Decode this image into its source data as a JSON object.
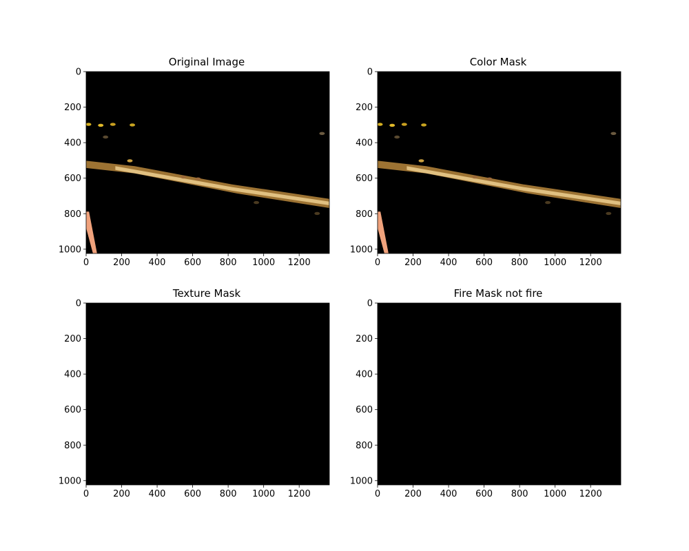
{
  "figure": {
    "background": "#ffffff",
    "image_background": "#000000"
  },
  "panels": [
    {
      "title": "Original Image",
      "shows_scene": true
    },
    {
      "title": "Color Mask",
      "shows_scene": true
    },
    {
      "title": "Texture Mask",
      "shows_scene": false
    },
    {
      "title": "Fire Mask not fire",
      "shows_scene": false
    }
  ],
  "chart_data": [
    {
      "type": "image",
      "title": "Original Image",
      "xlim": [
        0,
        1370
      ],
      "ylim": [
        1024,
        0
      ],
      "xticks": [
        0,
        200,
        400,
        600,
        800,
        1000,
        1200
      ],
      "yticks": [
        0,
        200,
        400,
        600,
        800,
        1000
      ]
    },
    {
      "type": "image",
      "title": "Color Mask",
      "xlim": [
        0,
        1370
      ],
      "ylim": [
        1024,
        0
      ],
      "xticks": [
        0,
        200,
        400,
        600,
        800,
        1000,
        1200
      ],
      "yticks": [
        0,
        200,
        400,
        600,
        800,
        1000
      ]
    },
    {
      "type": "image",
      "title": "Texture Mask",
      "xlim": [
        0,
        1370
      ],
      "ylim": [
        1024,
        0
      ],
      "xticks": [
        0,
        200,
        400,
        600,
        800,
        1000,
        1200
      ],
      "yticks": [
        0,
        200,
        400,
        600,
        800,
        1000
      ]
    },
    {
      "type": "image",
      "title": "Fire Mask not fire",
      "xlim": [
        0,
        1370
      ],
      "ylim": [
        1024,
        0
      ],
      "xticks": [
        0,
        200,
        400,
        600,
        800,
        1000,
        1200
      ],
      "yticks": [
        0,
        200,
        400,
        600,
        800,
        1000
      ]
    }
  ]
}
